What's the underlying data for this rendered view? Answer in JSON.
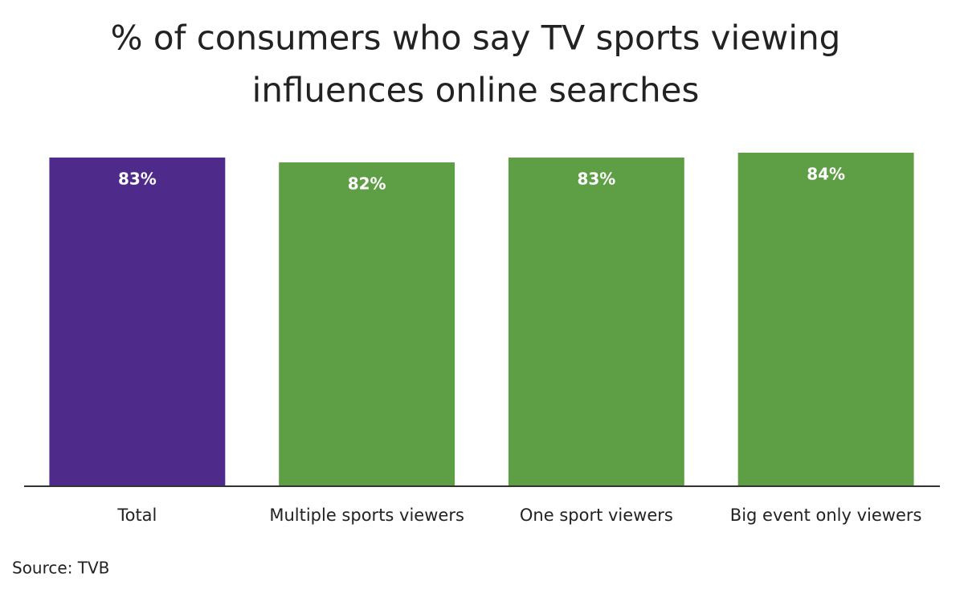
{
  "chart_data": {
    "type": "bar",
    "title": [
      "% of consumers who say TV sports viewing",
      "influences online searches"
    ],
    "categories": [
      "Total",
      "Multiple sports viewers",
      "One sport viewers",
      "Big event only viewers"
    ],
    "values": [
      83,
      82,
      83,
      84
    ],
    "value_labels": [
      "83%",
      "82%",
      "83%",
      "84%"
    ],
    "colors": [
      "#4e2a8a",
      "#5e9e45",
      "#5e9e45",
      "#5e9e45"
    ],
    "ylim": [
      15,
      85
    ],
    "source": "Source: TVB"
  }
}
